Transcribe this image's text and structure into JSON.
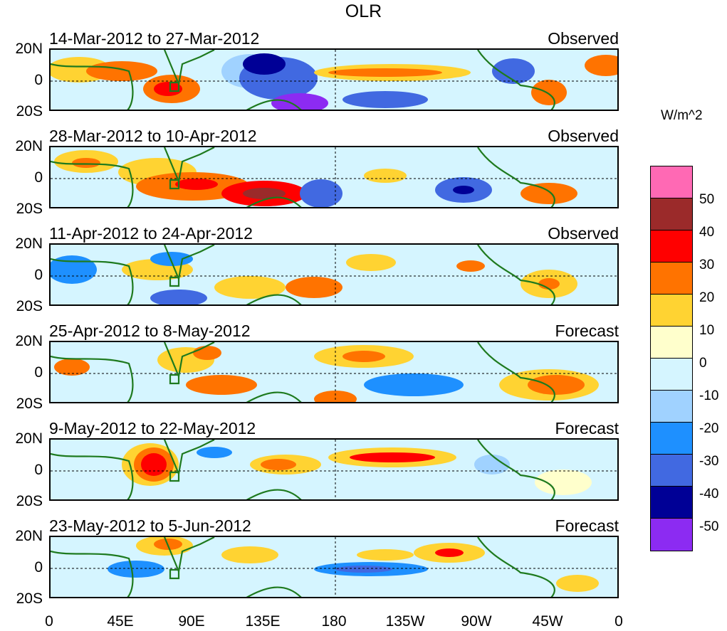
{
  "title": "OLR",
  "panels": [
    {
      "period": "14-Mar-2012 to 27-Mar-2012",
      "label": "Observed"
    },
    {
      "period": "28-Mar-2012 to 10-Apr-2012",
      "label": "Observed"
    },
    {
      "period": "11-Apr-2012 to 24-Apr-2012",
      "label": "Observed"
    },
    {
      "period": "25-Apr-2012 to 8-May-2012",
      "label": "Forecast"
    },
    {
      "period": "9-May-2012 to 22-May-2012",
      "label": "Forecast"
    },
    {
      "period": "23-May-2012 to 5-Jun-2012",
      "label": "Forecast"
    }
  ],
  "y_ticks": [
    "20N",
    "0",
    "20S"
  ],
  "x_ticks": [
    "0",
    "45E",
    "90E",
    "135E",
    "180",
    "135W",
    "90W",
    "45W",
    "0"
  ],
  "colorbar": {
    "units": "W/m^2",
    "labels": [
      "50",
      "40",
      "30",
      "20",
      "10",
      "0",
      "-10",
      "-20",
      "-30",
      "-40",
      "-50"
    ],
    "colors": [
      "#ff69b4",
      "#9b2a2a",
      "#ff0000",
      "#ff7300",
      "#ffd332",
      "#ffffcc",
      "#d5f5ff",
      "#a0d2ff",
      "#1e90ff",
      "#4169e1",
      "#000096",
      "#8c2bf2"
    ]
  }
}
